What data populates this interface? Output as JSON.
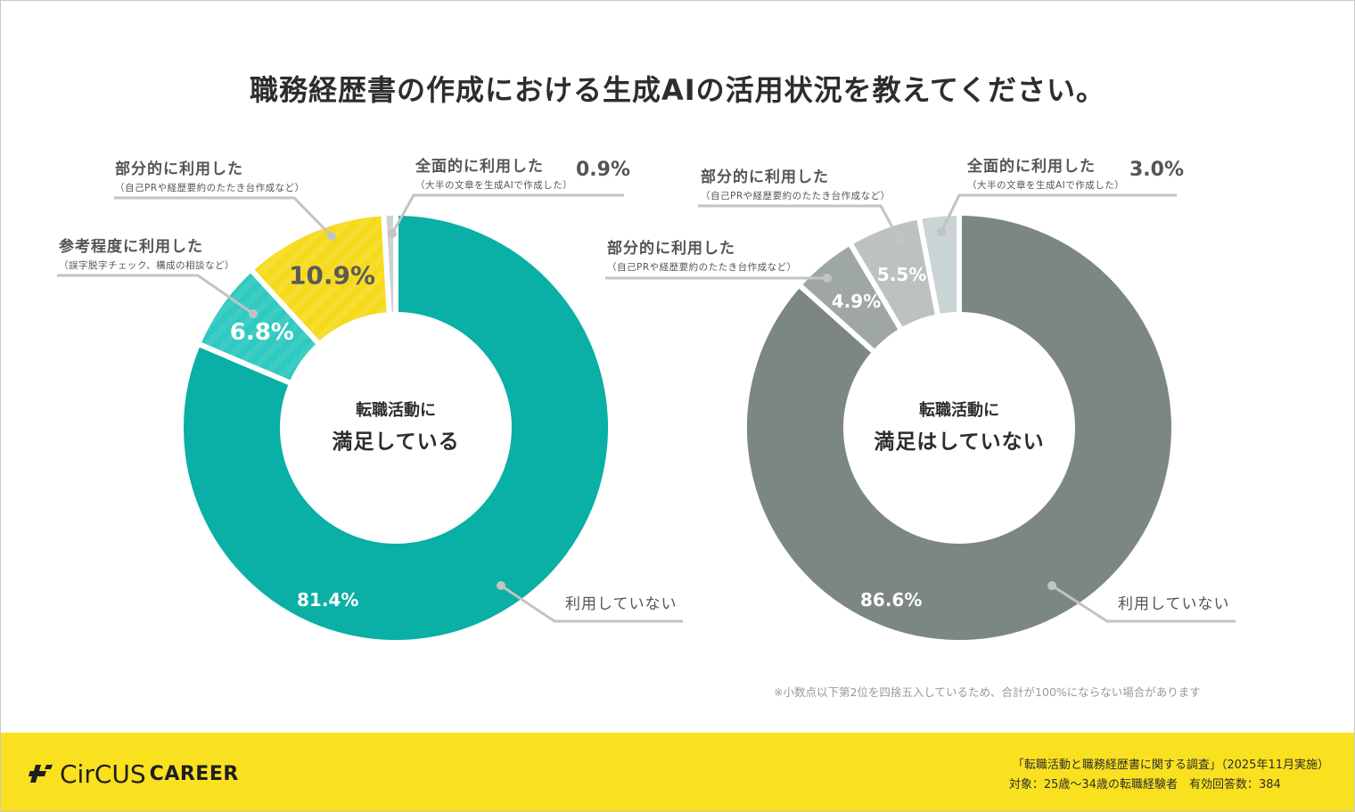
{
  "title": "職務経歴書の作成における生成AIの活用状況を教えてください。",
  "colors": {
    "teal": "#0aafa5",
    "light_teal": "#2ec9c0",
    "yellow": "#f5da1c",
    "light_grey": "#c9d1d1",
    "dark_grey": "#7c8685",
    "mid_grey": "#9ea7a6",
    "pale_grey": "#bcc2c2",
    "pale_blue_grey": "#cad4d4",
    "footer_yellow": "#fae11f"
  },
  "chart_data": [
    {
      "type": "pie",
      "variant": "donut",
      "center_label": [
        "転職活動に",
        "満足している"
      ],
      "slices": [
        {
          "label": "利用していない",
          "sublabel": "",
          "value": 81.4,
          "display": "81.4%",
          "color": "#0aafa5"
        },
        {
          "label": "参考程度に利用した",
          "sublabel": "（誤字脱字チェック、構成の相談など）",
          "value": 6.8,
          "display": "6.8%",
          "color": "#2ec9c0"
        },
        {
          "label": "部分的に利用した",
          "sublabel": "（自己PRや経歴要約のたたき台作成など）",
          "value": 10.9,
          "display": "10.9%",
          "color": "#f5da1c"
        },
        {
          "label": "全面的に利用した",
          "sublabel": "（大半の文章を生成AIで作成した）",
          "value": 0.9,
          "display": "0.9%",
          "color": "#c9d1d1"
        }
      ]
    },
    {
      "type": "pie",
      "variant": "donut",
      "center_label": [
        "転職活動に",
        "満足はしていない"
      ],
      "slices": [
        {
          "label": "利用していない",
          "sublabel": "",
          "value": 86.6,
          "display": "86.6%",
          "color": "#7c8685"
        },
        {
          "label": "部分的に利用した",
          "sublabel": "（自己PRや経歴要約のたたき台作成など）",
          "value": 4.9,
          "display": "4.9%",
          "color": "#9ea7a6"
        },
        {
          "label": "部分的に利用した",
          "sublabel": "（自己PRや経歴要約のたたき台作成など）",
          "value": 5.5,
          "display": "5.5%",
          "color": "#bcc2c2"
        },
        {
          "label": "全面的に利用した",
          "sublabel": "（大半の文章を生成AIで作成した）",
          "value": 3.0,
          "display": "3.0%",
          "color": "#cad4d4"
        }
      ]
    }
  ],
  "note": "※小数点以下第2位を四捨五入しているため、合計が100%にならない場合があります",
  "footer": {
    "logo_circus": "CirCUS",
    "logo_career": "CAREER",
    "survey_title": "「転職活動と職務経歴書に関する調査」（2025年11月実施）",
    "survey_target": "対象：25歳〜34歳の転職経験者　有効回答数：384"
  }
}
